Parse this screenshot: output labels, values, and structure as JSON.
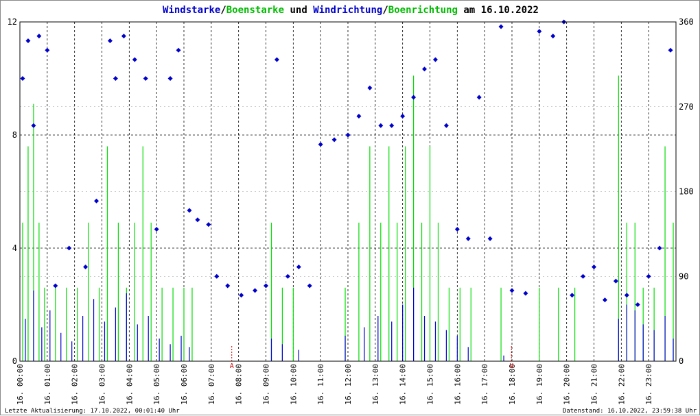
{
  "chart_data": {
    "type": "scatter",
    "title_parts": [
      {
        "text": "Windstarke",
        "color": "#0000cc"
      },
      {
        "text": "/",
        "color": "#000000"
      },
      {
        "text": "Boenstarke",
        "color": "#00bb00"
      },
      {
        "text": " und ",
        "color": "#000000"
      },
      {
        "text": "Windrichtung",
        "color": "#0000cc"
      },
      {
        "text": "/",
        "color": "#000000"
      },
      {
        "text": "Boenrichtung",
        "color": "#00bb00"
      },
      {
        "text": " am 16.10.2022",
        "color": "#000000"
      }
    ],
    "y_left": {
      "min": 0,
      "max": 12,
      "ticks": [
        0,
        4,
        8,
        12
      ]
    },
    "y_right": {
      "min": 0,
      "max": 360,
      "ticks": [
        0,
        90,
        180,
        270,
        360
      ]
    },
    "x_ticks": [
      "16. 00:00",
      "16. 01:00",
      "16. 02:00",
      "16. 03:00",
      "16. 04:00",
      "16. 05:00",
      "16. 06:00",
      "16. 07:00",
      "16. 08:00",
      "16. 09:00",
      "16. 10:00",
      "16. 11:00",
      "16. 12:00",
      "16. 13:00",
      "16. 14:00",
      "16. 15:00",
      "16. 16:00",
      "16. 17:00",
      "16. 18:00",
      "16. 19:00",
      "16. 20:00",
      "16. 21:00",
      "16. 22:00",
      "16. 23:00"
    ],
    "x_range_hours": [
      0,
      24
    ],
    "grid": true,
    "day_markers": [
      {
        "label": "A",
        "hour": 7.75
      },
      {
        "label": "U",
        "hour": 17.98
      }
    ],
    "colors": {
      "wind": "#0000cc",
      "gust": "#00dd00",
      "marker": "#cc0000"
    },
    "series": [
      {
        "name": "Windstarke",
        "kind": "speed",
        "samples": [
          [
            0.2,
            1.5
          ],
          [
            0.5,
            2.5
          ],
          [
            0.8,
            1.2
          ],
          [
            1.1,
            1.8
          ],
          [
            1.5,
            1.0
          ],
          [
            1.9,
            0.7
          ],
          [
            2.3,
            1.6
          ],
          [
            2.7,
            2.2
          ],
          [
            3.1,
            1.4
          ],
          [
            3.5,
            1.9
          ],
          [
            3.9,
            2.4
          ],
          [
            4.3,
            1.3
          ],
          [
            4.7,
            1.6
          ],
          [
            5.1,
            0.8
          ],
          [
            5.5,
            0.6
          ],
          [
            5.9,
            0.9
          ],
          [
            6.2,
            0.5
          ],
          [
            9.2,
            0.8
          ],
          [
            9.6,
            0.6
          ],
          [
            10.2,
            0.4
          ],
          [
            11.9,
            0.9
          ],
          [
            12.6,
            1.2
          ],
          [
            13.1,
            1.6
          ],
          [
            13.6,
            1.4
          ],
          [
            14.0,
            2.0
          ],
          [
            14.4,
            2.6
          ],
          [
            14.8,
            1.6
          ],
          [
            15.2,
            1.4
          ],
          [
            15.6,
            1.1
          ],
          [
            16.0,
            0.9
          ],
          [
            16.4,
            0.5
          ],
          [
            17.7,
            0.2
          ],
          [
            21.9,
            1.5
          ],
          [
            22.2,
            2.0
          ],
          [
            22.5,
            1.8
          ],
          [
            22.8,
            1.3
          ],
          [
            23.2,
            1.1
          ],
          [
            23.6,
            1.6
          ],
          [
            23.9,
            0.8
          ]
        ]
      },
      {
        "name": "Boenstarke",
        "kind": "gust",
        "samples": [
          [
            0.1,
            4.9
          ],
          [
            0.3,
            7.6
          ],
          [
            0.5,
            9.1
          ],
          [
            0.7,
            4.9
          ],
          [
            0.9,
            2.6
          ],
          [
            1.3,
            2.6
          ],
          [
            1.7,
            2.6
          ],
          [
            2.1,
            2.6
          ],
          [
            2.5,
            4.9
          ],
          [
            2.9,
            2.6
          ],
          [
            3.2,
            7.6
          ],
          [
            3.6,
            4.9
          ],
          [
            3.9,
            2.6
          ],
          [
            4.2,
            4.9
          ],
          [
            4.5,
            7.6
          ],
          [
            4.8,
            4.9
          ],
          [
            5.2,
            2.6
          ],
          [
            5.6,
            2.6
          ],
          [
            6.0,
            2.6
          ],
          [
            6.3,
            2.6
          ],
          [
            9.2,
            4.9
          ],
          [
            9.6,
            2.6
          ],
          [
            10.0,
            2.6
          ],
          [
            11.9,
            2.6
          ],
          [
            12.4,
            4.9
          ],
          [
            12.8,
            7.6
          ],
          [
            13.2,
            4.9
          ],
          [
            13.5,
            7.6
          ],
          [
            13.8,
            4.9
          ],
          [
            14.1,
            7.6
          ],
          [
            14.4,
            10.1
          ],
          [
            14.7,
            4.9
          ],
          [
            15.0,
            7.6
          ],
          [
            15.3,
            4.9
          ],
          [
            15.7,
            2.6
          ],
          [
            16.1,
            2.6
          ],
          [
            16.5,
            2.6
          ],
          [
            17.6,
            2.6
          ],
          [
            19.0,
            2.6
          ],
          [
            19.7,
            2.6
          ],
          [
            20.3,
            2.6
          ],
          [
            21.9,
            10.1
          ],
          [
            22.2,
            4.9
          ],
          [
            22.5,
            4.9
          ],
          [
            22.8,
            2.6
          ],
          [
            23.2,
            2.6
          ],
          [
            23.6,
            7.6
          ],
          [
            23.9,
            4.9
          ]
        ]
      },
      {
        "name": "Windrichtung",
        "kind": "direction",
        "samples": [
          [
            0.1,
            300
          ],
          [
            0.3,
            340
          ],
          [
            0.5,
            250
          ],
          [
            0.7,
            345
          ],
          [
            1.0,
            330
          ],
          [
            1.3,
            80
          ],
          [
            1.8,
            120
          ],
          [
            2.4,
            100
          ],
          [
            2.8,
            170
          ],
          [
            3.3,
            340
          ],
          [
            3.5,
            300
          ],
          [
            3.8,
            345
          ],
          [
            4.2,
            320
          ],
          [
            4.6,
            300
          ],
          [
            5.0,
            140
          ],
          [
            5.5,
            300
          ],
          [
            5.8,
            330
          ],
          [
            6.2,
            160
          ],
          [
            6.5,
            150
          ],
          [
            6.9,
            145
          ],
          [
            7.2,
            90
          ],
          [
            7.6,
            80
          ],
          [
            8.1,
            70
          ],
          [
            8.6,
            75
          ],
          [
            9.0,
            80
          ],
          [
            9.4,
            320
          ],
          [
            9.8,
            90
          ],
          [
            10.2,
            100
          ],
          [
            10.6,
            80
          ],
          [
            11.0,
            230
          ],
          [
            11.5,
            235
          ],
          [
            12.0,
            240
          ],
          [
            12.4,
            260
          ],
          [
            12.8,
            290
          ],
          [
            13.2,
            250
          ],
          [
            13.6,
            250
          ],
          [
            14.0,
            260
          ],
          [
            14.4,
            280
          ],
          [
            14.8,
            310
          ],
          [
            15.2,
            320
          ],
          [
            15.6,
            250
          ],
          [
            16.0,
            140
          ],
          [
            16.4,
            130
          ],
          [
            16.8,
            280
          ],
          [
            17.2,
            130
          ],
          [
            17.6,
            355
          ],
          [
            18.0,
            75
          ],
          [
            18.5,
            72
          ],
          [
            19.0,
            350
          ],
          [
            19.5,
            345
          ],
          [
            19.9,
            360
          ],
          [
            20.2,
            70
          ],
          [
            20.6,
            90
          ],
          [
            21.0,
            100
          ],
          [
            21.4,
            65
          ],
          [
            21.8,
            85
          ],
          [
            22.2,
            70
          ],
          [
            22.6,
            60
          ],
          [
            23.0,
            90
          ],
          [
            23.4,
            120
          ],
          [
            23.8,
            330
          ]
        ]
      }
    ]
  },
  "footer": {
    "left": "Letzte Aktualisierung: 17.10.2022, 00:01:40 Uhr",
    "right": "Datenstand: 16.10.2022, 23:59:38 Uhr"
  }
}
